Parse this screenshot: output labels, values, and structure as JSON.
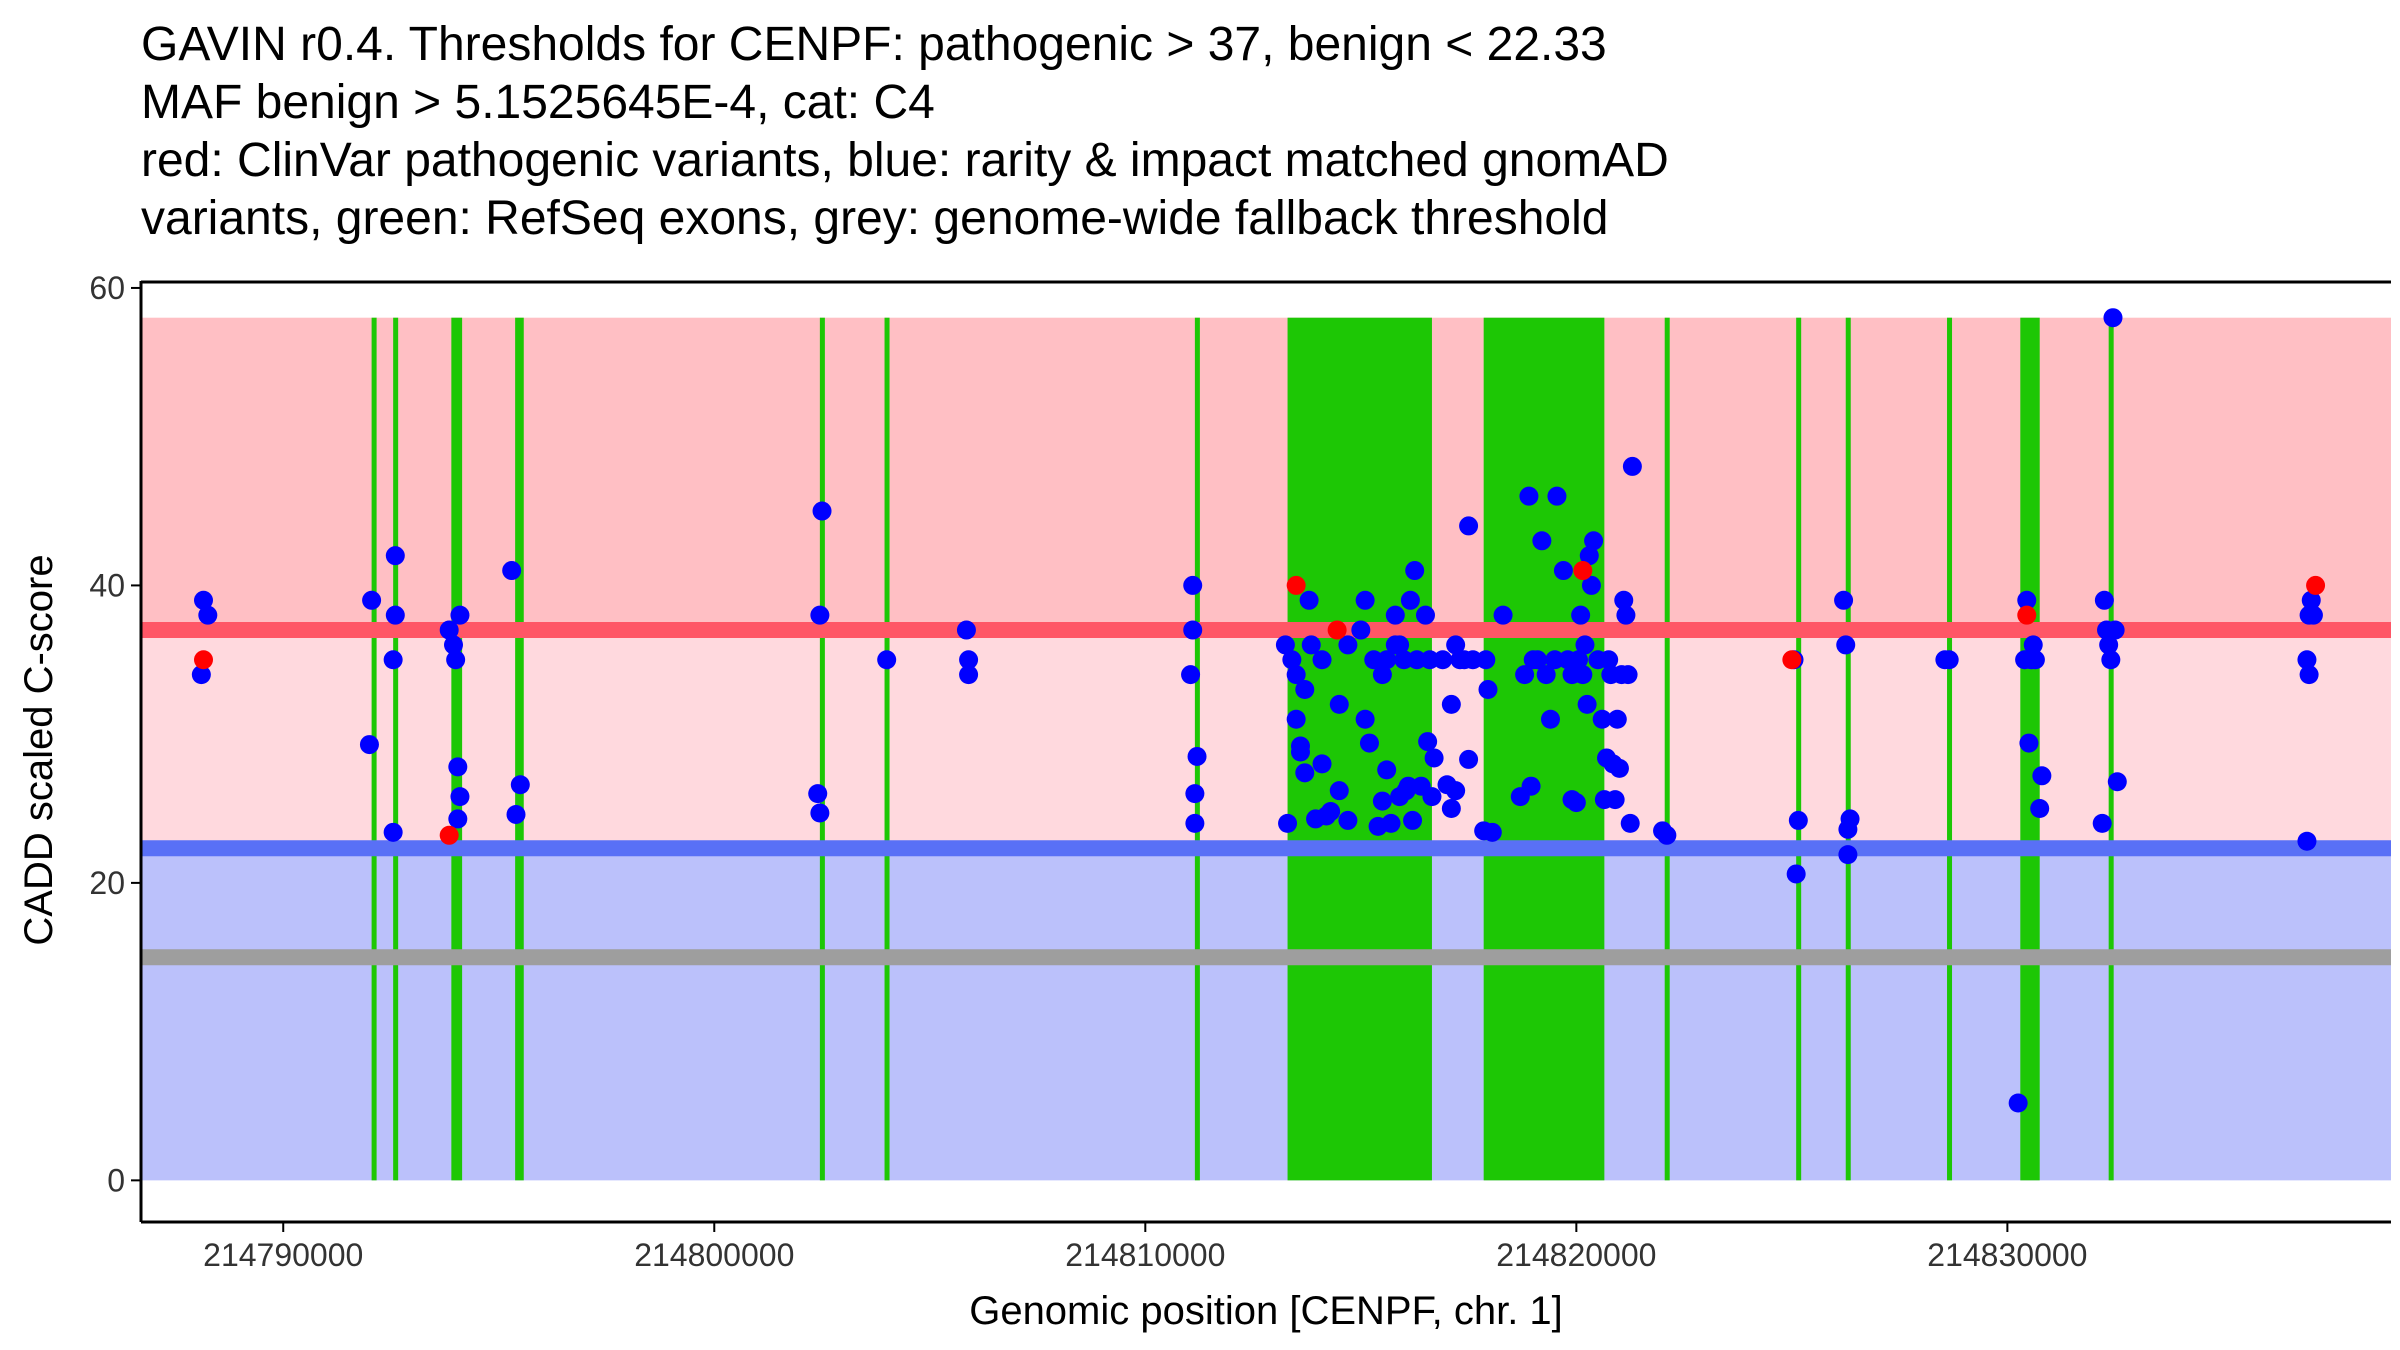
{
  "title_lines": [
    "GAVIN r0.4. Thresholds for CENPF: pathogenic > 37, benign < 22.33",
    "MAF benign > 5.1525645E-4, cat: C4",
    "red: ClinVar pathogenic variants, blue: rarity & impact matched gnomAD",
    "variants, green: RefSeq exons, grey: genome-wide fallback threshold"
  ],
  "colors": {
    "pathogenic_zone": "#FFBFC4",
    "uncertain_zone": "#FFD9DE",
    "benign_zone": "#BBC1FB",
    "pathogenic_line": "#FF5666",
    "benign_line": "#5970F6",
    "fallback_line": "#9E9E9E",
    "exon": "#1DC705",
    "gnomad_point": "#0000FF",
    "clinvar_point": "#FF0000",
    "axis": "#000000"
  },
  "chart_data": {
    "type": "scatter",
    "title": "GAVIN r0.4. Thresholds for CENPF: pathogenic > 37, benign < 22.33",
    "xlabel": "Genomic position [CENPF, chr. 1]",
    "ylabel": "CADD scaled C-score",
    "xlim": [
      214786700,
      214838900
    ],
    "ylim": [
      -2.8,
      60.4
    ],
    "x_ticks": [
      214790000,
      214800000,
      214810000,
      214820000,
      214830000
    ],
    "x_tick_labels": [
      "214790000",
      "214800000",
      "214810000",
      "214820000",
      "214830000"
    ],
    "y_ticks": [
      0,
      20,
      40,
      60
    ],
    "y_tick_labels": [
      "0",
      "20",
      "40",
      "60"
    ],
    "thresholds": {
      "pathogenic": 37,
      "benign": 22.33,
      "fallback": 15,
      "zone_top": 58
    },
    "exons": [
      [
        214792050,
        214792150
      ],
      [
        214792550,
        214792650
      ],
      [
        214793900,
        214794150
      ],
      [
        214795380,
        214795580
      ],
      [
        214802450,
        214802550
      ],
      [
        214803950,
        214804050
      ],
      [
        214811150,
        214811250
      ],
      [
        214813300,
        214816650
      ],
      [
        214817850,
        214820650
      ],
      [
        214822050,
        214822150
      ],
      [
        214825100,
        214825200
      ],
      [
        214826250,
        214826350
      ],
      [
        214828600,
        214828700
      ],
      [
        214830300,
        214830750
      ],
      [
        214832350,
        214832450
      ]
    ],
    "series": [
      {
        "name": "rarity & impact matched gnomAD variants",
        "color": "#0000FF",
        "points": [
          [
            214788100,
            34
          ],
          [
            214788150,
            39
          ],
          [
            214788250,
            38
          ],
          [
            214792000,
            29.3
          ],
          [
            214792050,
            39
          ],
          [
            214792550,
            23.4
          ],
          [
            214792550,
            35
          ],
          [
            214792600,
            42
          ],
          [
            214792600,
            38
          ],
          [
            214793850,
            37
          ],
          [
            214793950,
            36
          ],
          [
            214794000,
            35
          ],
          [
            214794050,
            24.3
          ],
          [
            214794050,
            27.8
          ],
          [
            214794100,
            25.8
          ],
          [
            214794100,
            38
          ],
          [
            214795300,
            41
          ],
          [
            214795400,
            24.6
          ],
          [
            214795500,
            26.6
          ],
          [
            214802400,
            26
          ],
          [
            214802450,
            24.7
          ],
          [
            214802450,
            38
          ],
          [
            214802500,
            45
          ],
          [
            214804000,
            35
          ],
          [
            214805850,
            37
          ],
          [
            214805900,
            35
          ],
          [
            214805900,
            34
          ],
          [
            214811050,
            34
          ],
          [
            214811100,
            40
          ],
          [
            214811100,
            37
          ],
          [
            214811150,
            26
          ],
          [
            214811150,
            24
          ],
          [
            214811200,
            28.5
          ],
          [
            214813250,
            36
          ],
          [
            214813300,
            24
          ],
          [
            214813400,
            35
          ],
          [
            214813500,
            34
          ],
          [
            214813500,
            31
          ],
          [
            214813600,
            29.2
          ],
          [
            214813600,
            28.8
          ],
          [
            214813700,
            33
          ],
          [
            214813700,
            27.4
          ],
          [
            214813800,
            39
          ],
          [
            214813850,
            36
          ],
          [
            214813950,
            24.3
          ],
          [
            214814100,
            35
          ],
          [
            214814100,
            28
          ],
          [
            214814200,
            24.5
          ],
          [
            214814300,
            24.8
          ],
          [
            214814500,
            26.2
          ],
          [
            214814500,
            32
          ],
          [
            214814700,
            24.2
          ],
          [
            214814700,
            36
          ],
          [
            214815000,
            37
          ],
          [
            214815100,
            39
          ],
          [
            214815100,
            31
          ],
          [
            214815200,
            29.4
          ],
          [
            214815300,
            35
          ],
          [
            214815400,
            23.8
          ],
          [
            214815500,
            25.5
          ],
          [
            214815500,
            34
          ],
          [
            214815600,
            35
          ],
          [
            214815600,
            27.6
          ],
          [
            214815700,
            24
          ],
          [
            214815800,
            36
          ],
          [
            214815800,
            38
          ],
          [
            214815900,
            25.8
          ],
          [
            214815900,
            36
          ],
          [
            214816000,
            35
          ],
          [
            214816050,
            26.2
          ],
          [
            214816100,
            26.5
          ],
          [
            214816150,
            39
          ],
          [
            214816200,
            24.2
          ],
          [
            214816250,
            41
          ],
          [
            214816300,
            35
          ],
          [
            214816400,
            26.5
          ],
          [
            214816500,
            38
          ],
          [
            214816550,
            29.5
          ],
          [
            214816600,
            35
          ],
          [
            214816650,
            25.8
          ],
          [
            214816700,
            28.4
          ],
          [
            214816900,
            35
          ],
          [
            214817000,
            26.6
          ],
          [
            214817100,
            32
          ],
          [
            214817100,
            25
          ],
          [
            214817200,
            26.2
          ],
          [
            214817200,
            36
          ],
          [
            214817300,
            35
          ],
          [
            214817400,
            35
          ],
          [
            214817500,
            44
          ],
          [
            214817500,
            28.3
          ],
          [
            214817600,
            35
          ],
          [
            214817850,
            23.5
          ],
          [
            214817900,
            35
          ],
          [
            214817950,
            33
          ],
          [
            214818050,
            23.4
          ],
          [
            214818300,
            38
          ],
          [
            214818700,
            25.8
          ],
          [
            214818800,
            34
          ],
          [
            214818900,
            46
          ],
          [
            214818950,
            26.5
          ],
          [
            214819000,
            35
          ],
          [
            214819100,
            35
          ],
          [
            214819200,
            43
          ],
          [
            214819300,
            34
          ],
          [
            214819400,
            31
          ],
          [
            214819500,
            35
          ],
          [
            214819550,
            46
          ],
          [
            214819700,
            41
          ],
          [
            214819800,
            35
          ],
          [
            214819900,
            34
          ],
          [
            214819900,
            25.6
          ],
          [
            214820000,
            25.4
          ],
          [
            214820050,
            35
          ],
          [
            214820100,
            38
          ],
          [
            214820150,
            34
          ],
          [
            214820200,
            36
          ],
          [
            214820250,
            32
          ],
          [
            214820300,
            42
          ],
          [
            214820400,
            43
          ],
          [
            214820350,
            40
          ],
          [
            214820500,
            35
          ],
          [
            214820600,
            31
          ],
          [
            214820650,
            25.6
          ],
          [
            214820700,
            28.4
          ],
          [
            214820750,
            35
          ],
          [
            214820800,
            34
          ],
          [
            214820850,
            28
          ],
          [
            214820900,
            25.6
          ],
          [
            214820950,
            31
          ],
          [
            214821000,
            27.7
          ],
          [
            214821050,
            34
          ],
          [
            214821100,
            39
          ],
          [
            214821150,
            38
          ],
          [
            214821200,
            34
          ],
          [
            214821250,
            24
          ],
          [
            214821300,
            48
          ],
          [
            214822000,
            23.5
          ],
          [
            214822100,
            23.2
          ],
          [
            214825050,
            35
          ],
          [
            214825100,
            20.6
          ],
          [
            214825150,
            24.2
          ],
          [
            214826200,
            39
          ],
          [
            214826250,
            36
          ],
          [
            214826300,
            21.9
          ],
          [
            214826300,
            23.6
          ],
          [
            214826350,
            24.3
          ],
          [
            214828550,
            35
          ],
          [
            214828650,
            35
          ],
          [
            214830250,
            5.2
          ],
          [
            214830400,
            35
          ],
          [
            214830450,
            39
          ],
          [
            214830500,
            29.4
          ],
          [
            214830550,
            35
          ],
          [
            214830600,
            36
          ],
          [
            214830650,
            35
          ],
          [
            214830750,
            25
          ],
          [
            214830800,
            27.2
          ],
          [
            214832200,
            24
          ],
          [
            214832250,
            39
          ],
          [
            214832300,
            37
          ],
          [
            214832350,
            36
          ],
          [
            214832400,
            35
          ],
          [
            214832450,
            58
          ],
          [
            214832500,
            37
          ],
          [
            214832550,
            26.8
          ],
          [
            214836950,
            22.8
          ],
          [
            214836950,
            35
          ],
          [
            214837000,
            34
          ],
          [
            214837000,
            38
          ],
          [
            214837050,
            39
          ],
          [
            214837100,
            38
          ]
        ]
      },
      {
        "name": "ClinVar pathogenic variants",
        "color": "#FF0000",
        "points": [
          [
            214788150,
            35
          ],
          [
            214793850,
            23.2
          ],
          [
            214813500,
            40
          ],
          [
            214814450,
            37
          ],
          [
            214820150,
            41
          ],
          [
            214825000,
            35
          ],
          [
            214830450,
            38
          ],
          [
            214837150,
            40
          ]
        ]
      }
    ]
  }
}
